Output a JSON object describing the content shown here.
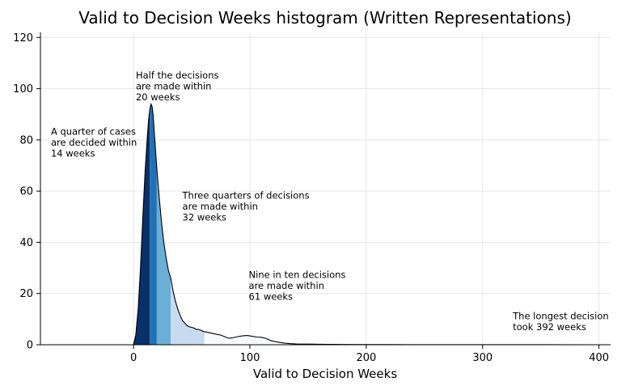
{
  "chart_data": {
    "type": "area",
    "title": "Valid to Decision Weeks histogram (Written Representations)",
    "xlabel": "Valid to Decision Weeks",
    "ylabel": "",
    "xlim": [
      -80,
      410
    ],
    "ylim": [
      0,
      122
    ],
    "xticks": [
      0,
      100,
      200,
      300,
      400
    ],
    "yticks": [
      0,
      20,
      40,
      60,
      80,
      100,
      120
    ],
    "grid": true,
    "density_curve": {
      "x": [
        -80,
        0,
        2,
        4,
        6,
        8,
        10,
        12,
        13,
        14,
        15,
        16,
        17,
        18,
        20,
        22,
        24,
        26,
        28,
        30,
        32,
        34,
        36,
        38,
        40,
        42,
        44,
        46,
        48,
        50,
        52,
        54,
        56,
        58,
        60,
        62,
        64,
        66,
        68,
        70,
        72,
        75,
        78,
        82,
        86,
        90,
        94,
        98,
        102,
        106,
        110,
        114,
        118,
        122,
        126,
        130,
        135,
        140,
        150,
        160,
        170,
        180,
        200,
        220,
        250,
        300,
        350,
        392,
        410
      ],
      "y": [
        0,
        0,
        4,
        14,
        30,
        50,
        68,
        82,
        88,
        92,
        94,
        93,
        89,
        82,
        69,
        58,
        48,
        40,
        34,
        29,
        26,
        21,
        17,
        14,
        11.5,
        9.5,
        8.5,
        7.5,
        7,
        6.8,
        6.5,
        6,
        6,
        5.6,
        5.2,
        5,
        4.8,
        4.6,
        4.4,
        4.2,
        4,
        3.8,
        3.2,
        2.5,
        2.8,
        3.2,
        3.5,
        3.6,
        3.3,
        3,
        2.9,
        2.4,
        1.6,
        1.2,
        0.9,
        0.6,
        0.4,
        0.3,
        0.25,
        0.2,
        0.15,
        0.12,
        0.08,
        0.05,
        0.03,
        0.02,
        0.01,
        0,
        0
      ]
    },
    "bands": [
      {
        "from": 0,
        "to": 14,
        "color": "#08306b"
      },
      {
        "from": 14,
        "to": 20,
        "color": "#2171b5"
      },
      {
        "from": 20,
        "to": 32,
        "color": "#6baed6"
      },
      {
        "from": 32,
        "to": 61,
        "color": "#c6dbef"
      },
      {
        "from": 61,
        "to": 392,
        "color": "#f7fbff"
      }
    ],
    "annotations": [
      {
        "lines": [
          "A quarter of cases",
          "are decided within",
          "14 weeks"
        ],
        "x": -71,
        "y": 82
      },
      {
        "lines": [
          "Half the decisions",
          "are made within",
          "20 weeks"
        ],
        "x": 2,
        "y": 104
      },
      {
        "lines": [
          "Three quarters of decisions",
          "are made within",
          "32 weeks"
        ],
        "x": 42,
        "y": 57
      },
      {
        "lines": [
          "Nine in ten decisions",
          "are made within",
          "61 weeks"
        ],
        "x": 99,
        "y": 26
      },
      {
        "lines": [
          "The longest decision",
          "took 392 weeks"
        ],
        "x": 326,
        "y": 10
      }
    ]
  }
}
